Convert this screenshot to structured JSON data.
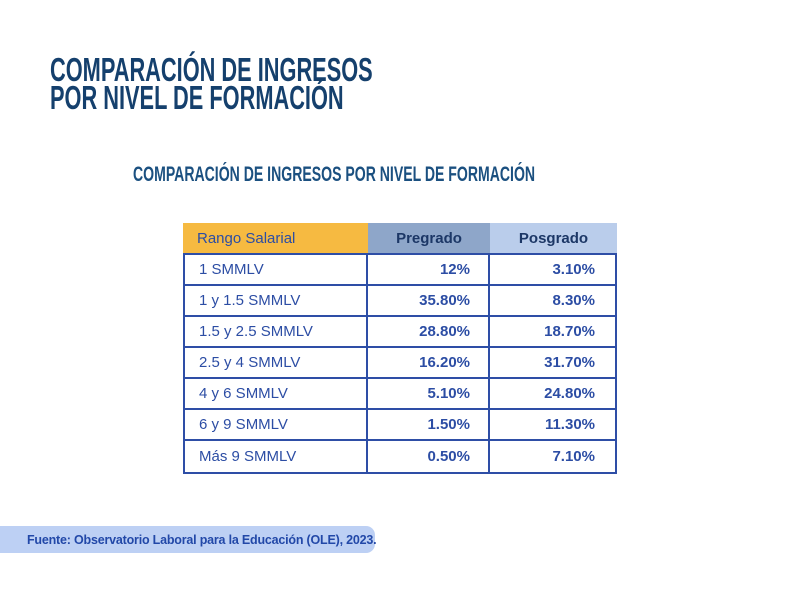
{
  "title": {
    "line1": "COMPARACIÓN DE INGRESOS",
    "line2": "POR NIVEL DE FORMACIÓN"
  },
  "subtitle": {
    "text": "COMPARACIÓN DE INGRESOS POR NIVEL DE FORMACIÓN"
  },
  "table": {
    "headers": [
      "Rango Salarial",
      "Pregrado",
      "Posgrado"
    ],
    "rows": [
      [
        "1 SMMLV",
        "12%",
        "3.10%"
      ],
      [
        "1 y 1.5 SMMLV",
        "35.80%",
        "8.30%"
      ],
      [
        "1.5 y 2.5 SMMLV",
        "28.80%",
        "18.70%"
      ],
      [
        "2.5 y 4 SMMLV",
        "16.20%",
        "31.70%"
      ],
      [
        "4 y 6 SMMLV",
        "5.10%",
        "24.80%"
      ],
      [
        "6 y 9 SMMLV",
        "1.50%",
        "11.30%"
      ],
      [
        "Más 9 SMMLV",
        "0.50%",
        "7.10%"
      ]
    ]
  },
  "footer": {
    "text": "Fuente: Observatorio Laboral para la Educación (OLE), 2023."
  },
  "colors": {
    "title": "#15406d",
    "subtitle": "#1b5080",
    "header_yellow": "#f6ba41",
    "header_slate": "#8ea6c9",
    "header_lightblue": "#bacdeb",
    "header_text": "#1c3766",
    "table_border": "#2e4ea6",
    "cell_text": "#2c4da4",
    "footer_bg": "#bdd0f4",
    "footer_text": "#2248a8"
  },
  "chart_data": {
    "type": "table",
    "title": "COMPARACIÓN DE INGRESOS POR NIVEL DE FORMACIÓN",
    "columns": [
      "Rango Salarial",
      "Pregrado",
      "Posgrado"
    ],
    "categories": [
      "1 SMMLV",
      "1 y 1.5 SMMLV",
      "1.5 y 2.5 SMMLV",
      "2.5 y 4 SMMLV",
      "4 y 6 SMMLV",
      "6 y 9 SMMLV",
      "Más 9 SMMLV"
    ],
    "series": [
      {
        "name": "Pregrado",
        "values": [
          12,
          35.8,
          28.8,
          16.2,
          5.1,
          1.5,
          0.5
        ]
      },
      {
        "name": "Posgrado",
        "values": [
          3.1,
          8.3,
          18.7,
          31.7,
          24.8,
          11.3,
          7.1
        ]
      }
    ],
    "value_unit": "%",
    "source": "Fuente: Observatorio Laboral para la Educación (OLE), 2023."
  }
}
